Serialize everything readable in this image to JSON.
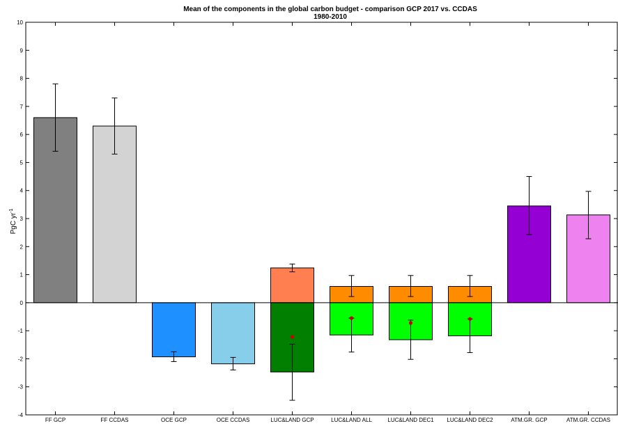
{
  "chart_data": {
    "type": "bar",
    "title": "Mean of the components in the global carbon budget - comparison GCP 2017 vs. CCDAS",
    "subtitle": "1980-2010",
    "ylabel": "PgC yr",
    "ylabel_superscript": "-1",
    "xlabel": "",
    "ylim": [
      -4,
      10
    ],
    "yticks": [
      "-4",
      "-3",
      "-2",
      "-1",
      "0",
      "1",
      "2",
      "3",
      "4",
      "5",
      "6",
      "7",
      "8",
      "9",
      "10"
    ],
    "grid": false,
    "categories": [
      "FF GCP",
      "FF CCDAS",
      "OCE GCP",
      "OCE CCDAS",
      "LUC&LAND GCP",
      "LUC&LAND ALL",
      "LUC&LAND DEC1",
      "LUC&LAND DEC2",
      "ATM.GR. GCP",
      "ATM.GR. CCDAS"
    ],
    "bars": [
      {
        "value": 6.6,
        "color": "#808080",
        "err_low": 5.4,
        "err_high": 7.8
      },
      {
        "value": 6.3,
        "color": "#d3d3d3",
        "err_low": 5.3,
        "err_high": 7.3
      },
      {
        "value": -1.93,
        "color": "#1e90ff",
        "err_low": -2.1,
        "err_high": -1.75
      },
      {
        "value": -2.18,
        "color": "#87ceeb",
        "err_low": -2.4,
        "err_high": -1.95
      },
      {
        "value": 1.24,
        "color": "#ff7f50",
        "err_low": 1.1,
        "err_high": 1.38
      },
      {
        "value": 0.58,
        "color": "#ff8c00",
        "err_low": 0.22,
        "err_high": 0.97
      },
      {
        "value": 0.58,
        "color": "#ff8c00",
        "err_low": 0.22,
        "err_high": 0.97
      },
      {
        "value": 0.58,
        "color": "#ff8c00",
        "err_low": 0.22,
        "err_high": 0.97
      },
      {
        "value": 3.45,
        "color": "#9400d3",
        "err_low": 2.43,
        "err_high": 4.5
      },
      {
        "value": 3.13,
        "color": "#ee82ee",
        "err_low": 2.28,
        "err_high": 3.97
      }
    ],
    "negative_bars": [
      {
        "index": 4,
        "value": -2.47,
        "color": "#007f00",
        "err_low": -3.48,
        "err_high": -1.48,
        "marker": -1.22
      },
      {
        "index": 5,
        "value": -1.15,
        "color": "#00ff00",
        "err_low": -1.76,
        "err_high": -0.55,
        "marker": -0.55
      },
      {
        "index": 6,
        "value": -1.32,
        "color": "#00ff00",
        "err_low": -2.02,
        "err_high": -0.62,
        "marker": -0.72
      },
      {
        "index": 7,
        "value": -1.18,
        "color": "#00ff00",
        "err_low": -1.78,
        "err_high": -0.58,
        "marker": -0.58
      }
    ],
    "marker_color": "#cc0000"
  }
}
